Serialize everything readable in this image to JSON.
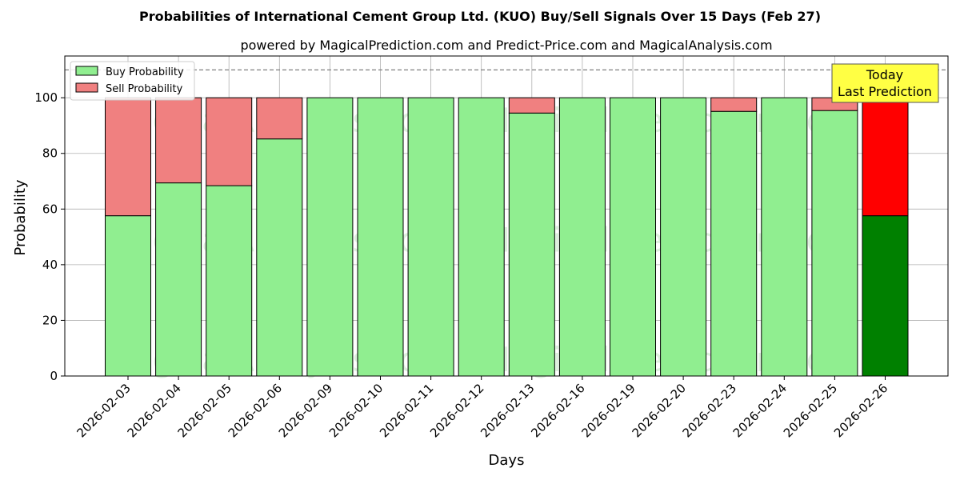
{
  "chart_data": {
    "type": "bar",
    "stacked": true,
    "title": "Probabilities of International Cement Group Ltd. (KUO) Buy/Sell Signals Over 15 Days (Feb 27)",
    "subtitle": "powered by MagicalPrediction.com and Predict-Price.com and MagicalAnalysis.com",
    "xlabel": "Days",
    "ylabel": "Probability",
    "ylim": [
      0,
      115
    ],
    "yticks": [
      0,
      20,
      40,
      60,
      80,
      100
    ],
    "reference_line": 110,
    "grid": true,
    "legend_position": "top-left",
    "categories": [
      "2026-02-03",
      "2026-02-04",
      "2026-02-05",
      "2026-02-06",
      "2026-02-09",
      "2026-02-10",
      "2026-02-11",
      "2026-02-12",
      "2026-02-13",
      "2026-02-16",
      "2026-02-19",
      "2026-02-20",
      "2026-02-23",
      "2026-02-24",
      "2026-02-25",
      "2026-02-26"
    ],
    "series": [
      {
        "name": "Buy Probability",
        "color": "#90ee90",
        "highlight_color": "#008000",
        "values": [
          57.6,
          69.4,
          68.4,
          85.2,
          100,
          100,
          100,
          100,
          94.5,
          100,
          100,
          100,
          95.1,
          100,
          95.4,
          57.6
        ]
      },
      {
        "name": "Sell Probability",
        "color": "#f08080",
        "highlight_color": "#ff0000",
        "values": [
          42.4,
          30.6,
          31.6,
          14.8,
          0,
          0,
          0,
          0,
          5.5,
          0,
          0,
          0,
          4.9,
          0,
          4.6,
          42.4
        ]
      }
    ],
    "highlight_index": 15,
    "annotation": {
      "line1": "Today",
      "line2": "Last Prediction",
      "background": "#ffff44"
    },
    "watermarks": [
      "MagicalAnalysis.com",
      "MagicalPrediction.com"
    ]
  }
}
